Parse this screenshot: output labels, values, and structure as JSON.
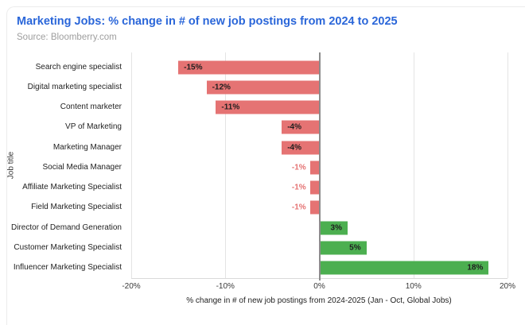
{
  "header": {
    "title": "Marketing Jobs: % change in # of new job postings from 2024 to 2025",
    "source": "Source: Bloomberry.com"
  },
  "colors": {
    "title_blue": "#2a66d9",
    "source_gray": "#9e9e9e",
    "bar_negative": "#e57373",
    "bar_positive": "#4caf50",
    "label_dark": "#1f1f1f",
    "label_negative_outside": "#e57373",
    "gridline": "#e4e4e4",
    "zero_axis": "#8c8c8c"
  },
  "chart_data": {
    "type": "bar",
    "orientation": "horizontal",
    "title": "Marketing Jobs: % change in # of new job postings from 2024 to 2025",
    "subtitle": "Source: Bloomberry.com",
    "categories": [
      "Search engine specialist",
      "Digital marketing specialist",
      "Content marketer",
      "VP of Marketing",
      "Marketing Manager",
      "Social Media Manager",
      "Affiliate Marketing Specialist",
      "Field Marketing Specialist",
      "Director of Demand Generation",
      "Customer Marketing Specialist",
      "Influencer Marketing Specialist"
    ],
    "values": [
      -15,
      -12,
      -11,
      -4,
      -4,
      -1,
      -1,
      -1,
      3,
      5,
      18
    ],
    "value_labels": [
      "-15%",
      "-12%",
      "-11%",
      "-4%",
      "-4%",
      "-1%",
      "-1%",
      "-1%",
      "3%",
      "5%",
      "18%"
    ],
    "xlabel": "% change in # of new job postings from 2024-2025 (Jan - Oct, Global Jobs)",
    "ylabel": "Job title",
    "xlim": [
      -20,
      20
    ],
    "xtick_values": [
      -20,
      -10,
      0,
      10,
      20
    ],
    "xtick_labels": [
      "-20%",
      "-10%",
      "0%",
      "10%",
      "20%"
    ],
    "grid": true,
    "legend": "none",
    "negative_color": "#e57373",
    "positive_color": "#4caf50"
  }
}
